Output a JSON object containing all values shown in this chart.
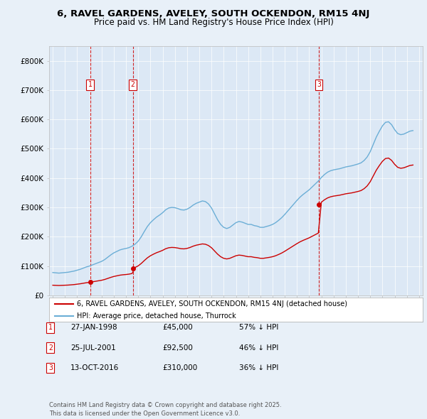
{
  "title_line1": "6, RAVEL GARDENS, AVELEY, SOUTH OCKENDON, RM15 4NJ",
  "title_line2": "Price paid vs. HM Land Registry's House Price Index (HPI)",
  "background_color": "#e8f0f8",
  "plot_bg_color": "#dce8f5",
  "ylim": [
    0,
    850000
  ],
  "yticks": [
    0,
    100000,
    200000,
    300000,
    400000,
    500000,
    600000,
    700000,
    800000
  ],
  "ytick_labels": [
    "£0",
    "£100K",
    "£200K",
    "£300K",
    "£400K",
    "£500K",
    "£600K",
    "£700K",
    "£800K"
  ],
  "transactions": [
    {
      "date_num": 1998.07,
      "price": 45000,
      "label": "1"
    },
    {
      "date_num": 2001.56,
      "price": 92500,
      "label": "2"
    },
    {
      "date_num": 2016.79,
      "price": 310000,
      "label": "3"
    }
  ],
  "transaction_details": [
    {
      "num": "1",
      "date": "27-JAN-1998",
      "price": "£45,000",
      "hpi": "57% ↓ HPI"
    },
    {
      "num": "2",
      "date": "25-JUL-2001",
      "price": "£92,500",
      "hpi": "46% ↓ HPI"
    },
    {
      "num": "3",
      "date": "13-OCT-2016",
      "price": "£310,000",
      "hpi": "36% ↓ HPI"
    }
  ],
  "legend_entry1": "6, RAVEL GARDENS, AVELEY, SOUTH OCKENDON, RM15 4NJ (detached house)",
  "legend_entry2": "HPI: Average price, detached house, Thurrock",
  "footer": "Contains HM Land Registry data © Crown copyright and database right 2025.\nThis data is licensed under the Open Government Licence v3.0.",
  "hpi_color": "#6baed6",
  "sold_color": "#cc0000",
  "dashed_color": "#cc0000",
  "hpi_data": {
    "years": [
      1995.0,
      1995.25,
      1995.5,
      1995.75,
      1996.0,
      1996.25,
      1996.5,
      1996.75,
      1997.0,
      1997.25,
      1997.5,
      1997.75,
      1998.0,
      1998.25,
      1998.5,
      1998.75,
      1999.0,
      1999.25,
      1999.5,
      1999.75,
      2000.0,
      2000.25,
      2000.5,
      2000.75,
      2001.0,
      2001.25,
      2001.5,
      2001.75,
      2002.0,
      2002.25,
      2002.5,
      2002.75,
      2003.0,
      2003.25,
      2003.5,
      2003.75,
      2004.0,
      2004.25,
      2004.5,
      2004.75,
      2005.0,
      2005.25,
      2005.5,
      2005.75,
      2006.0,
      2006.25,
      2006.5,
      2006.75,
      2007.0,
      2007.25,
      2007.5,
      2007.75,
      2008.0,
      2008.25,
      2008.5,
      2008.75,
      2009.0,
      2009.25,
      2009.5,
      2009.75,
      2010.0,
      2010.25,
      2010.5,
      2010.75,
      2011.0,
      2011.25,
      2011.5,
      2011.75,
      2012.0,
      2012.25,
      2012.5,
      2012.75,
      2013.0,
      2013.25,
      2013.5,
      2013.75,
      2014.0,
      2014.25,
      2014.5,
      2014.75,
      2015.0,
      2015.25,
      2015.5,
      2015.75,
      2016.0,
      2016.25,
      2016.5,
      2016.75,
      2017.0,
      2017.25,
      2017.5,
      2017.75,
      2018.0,
      2018.25,
      2018.5,
      2018.75,
      2019.0,
      2019.25,
      2019.5,
      2019.75,
      2020.0,
      2020.25,
      2020.5,
      2020.75,
      2021.0,
      2021.25,
      2021.5,
      2021.75,
      2022.0,
      2022.25,
      2022.5,
      2022.75,
      2023.0,
      2023.25,
      2023.5,
      2023.75,
      2024.0,
      2024.25,
      2024.5
    ],
    "values": [
      78000,
      77000,
      76000,
      77000,
      78000,
      79000,
      81000,
      83000,
      86000,
      89000,
      93000,
      97000,
      100000,
      104000,
      108000,
      112000,
      116000,
      122000,
      130000,
      138000,
      145000,
      150000,
      155000,
      158000,
      160000,
      163000,
      168000,
      175000,
      185000,
      200000,
      218000,
      235000,
      248000,
      258000,
      267000,
      274000,
      282000,
      292000,
      298000,
      300000,
      299000,
      296000,
      292000,
      291000,
      294000,
      300000,
      308000,
      314000,
      318000,
      322000,
      320000,
      312000,
      298000,
      278000,
      258000,
      242000,
      232000,
      228000,
      232000,
      240000,
      248000,
      252000,
      250000,
      246000,
      242000,
      242000,
      238000,
      236000,
      232000,
      232000,
      235000,
      238000,
      242000,
      248000,
      256000,
      265000,
      276000,
      288000,
      300000,
      312000,
      324000,
      335000,
      344000,
      352000,
      360000,
      370000,
      380000,
      390000,
      402000,
      412000,
      420000,
      425000,
      428000,
      430000,
      432000,
      435000,
      438000,
      440000,
      442000,
      445000,
      448000,
      452000,
      460000,
      472000,
      490000,
      515000,
      540000,
      560000,
      578000,
      590000,
      592000,
      582000,
      565000,
      552000,
      548000,
      550000,
      555000,
      560000,
      562000
    ]
  },
  "sold_line_segments": [
    {
      "start_year": 1995.0,
      "end_year": 2001.56,
      "base_year": 1998.07,
      "base_price": 45000
    },
    {
      "start_year": 2001.56,
      "end_year": 2016.79,
      "base_year": 2001.56,
      "base_price": 92500
    },
    {
      "start_year": 2016.79,
      "end_year": 2024.5,
      "base_year": 2016.79,
      "base_price": 310000
    }
  ]
}
